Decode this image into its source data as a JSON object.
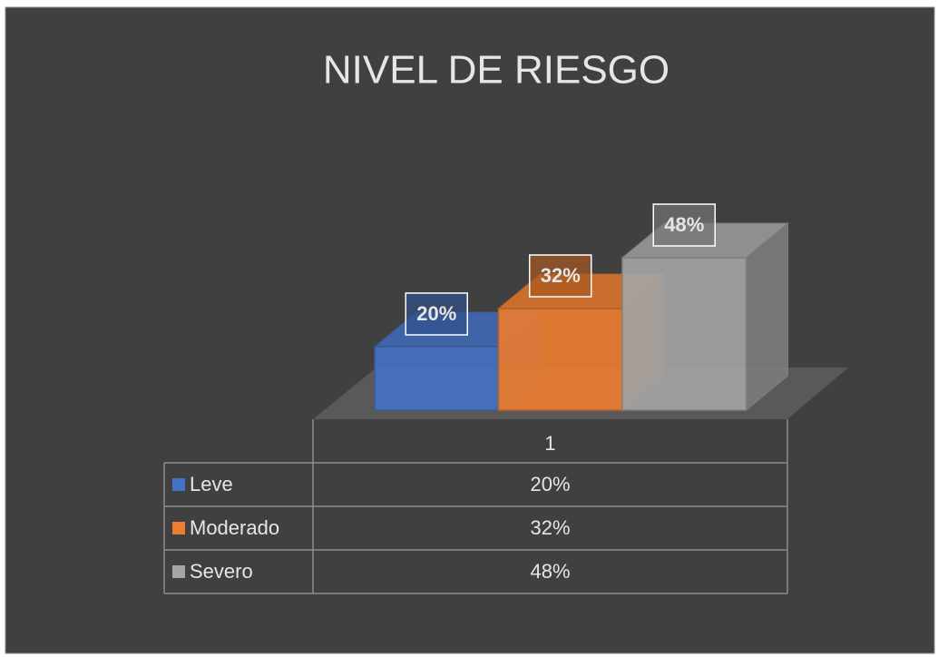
{
  "chart_data": {
    "type": "bar3d",
    "title": "NIVEL DE RIESGO",
    "categories": [
      "1"
    ],
    "series": [
      {
        "name": "Leve",
        "color": "#4472c4",
        "values": [
          20
        ],
        "value_labels": [
          "20%"
        ]
      },
      {
        "name": "Moderado",
        "color": "#ed7d31",
        "values": [
          32
        ],
        "value_labels": [
          "32%"
        ]
      },
      {
        "name": "Severo",
        "color": "#a5a5a5",
        "values": [
          48
        ],
        "value_labels": [
          "48%"
        ]
      }
    ]
  }
}
